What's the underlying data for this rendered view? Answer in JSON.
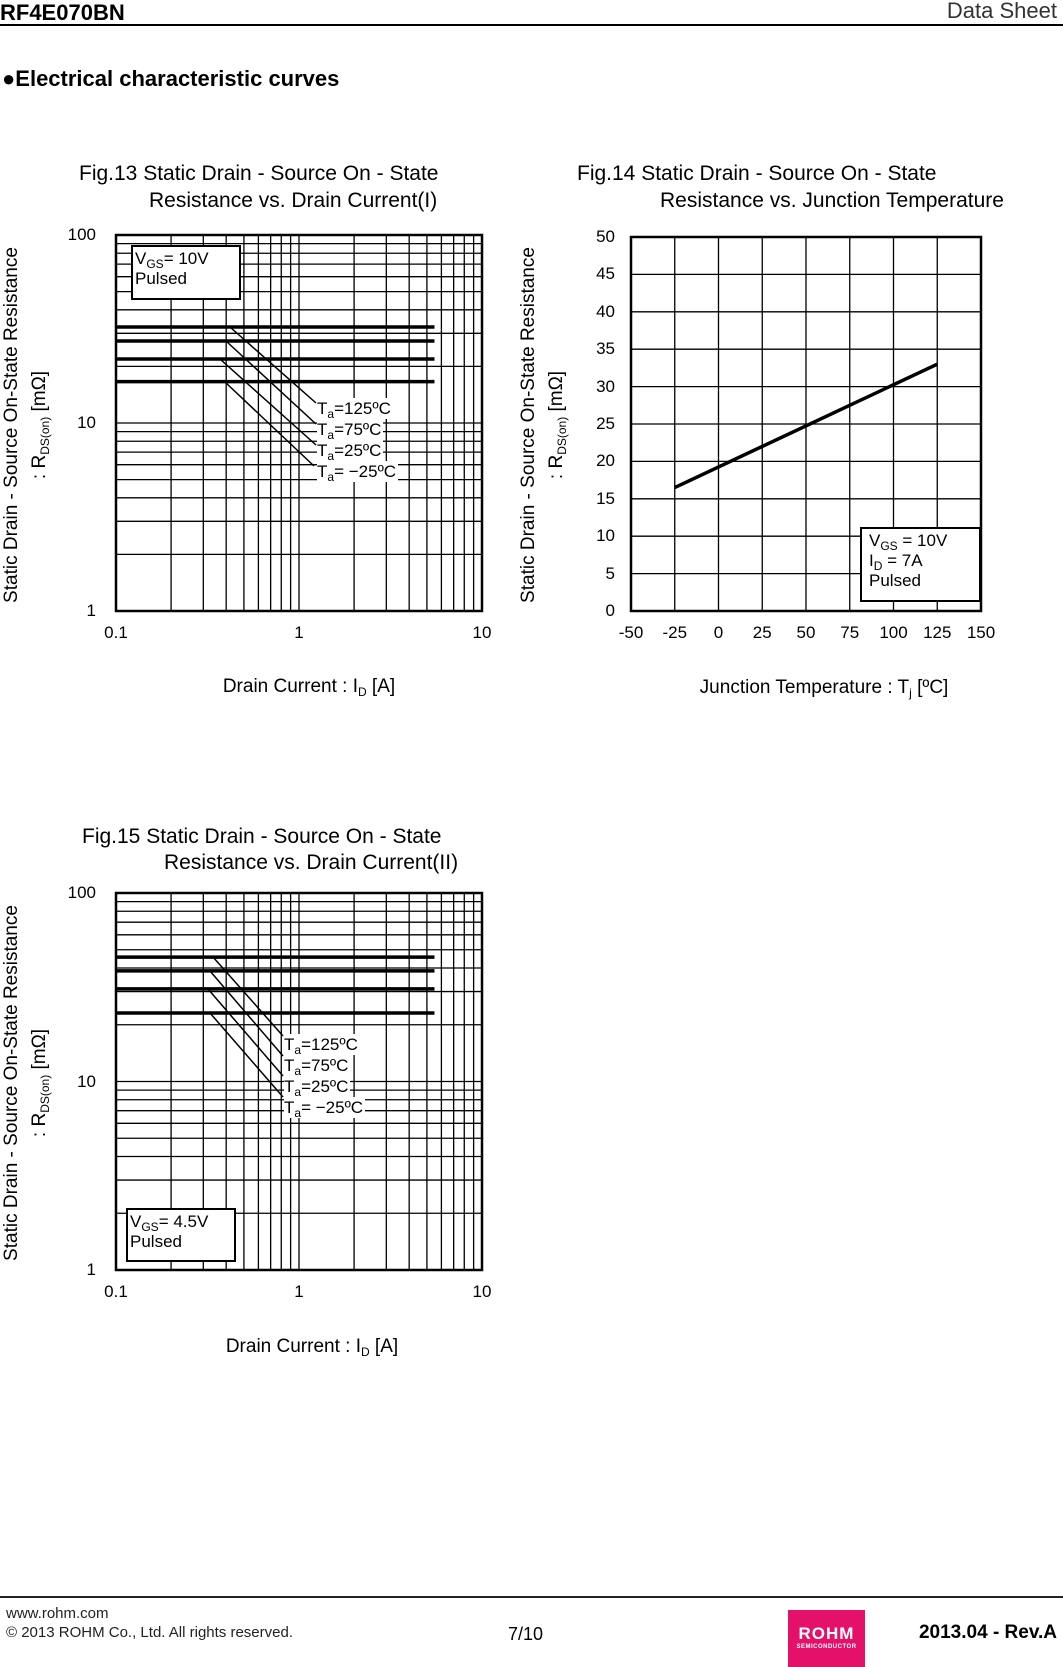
{
  "header": {
    "part_number": "RF4E070BN",
    "doc_type": "Data Sheet"
  },
  "section_title": "●Electrical characteristic curves",
  "chart_data": [
    {
      "type": "line",
      "title": [
        "Fig.13 Static Drain - Source On - State",
        "Resistance vs. Drain Current(I)"
      ],
      "xlabel": {
        "main": "Drain Current : I",
        "sub": "D",
        "unit": " [A]"
      },
      "ylabel": {
        "line1": "Static Drain - Source On-State Resistance",
        "line2_pre": ": R",
        "line2_sub": "DS(on)",
        "line2_post": " [mΩ]"
      },
      "xscale": "log",
      "yscale": "log",
      "xlim": [
        0.1,
        10
      ],
      "ylim": [
        1,
        100
      ],
      "xticks": [
        "0.1",
        "1",
        "10"
      ],
      "yticks": [
        "1",
        "10",
        "100"
      ],
      "grid": true,
      "conditions": {
        "l1_pre": "V",
        "l1_sub": "GS",
        "l1_post": "= 10V",
        "l2": "Pulsed"
      },
      "series": [
        {
          "name_pre": "T",
          "name_sub": "a",
          "name_post": "=125ºC",
          "x": [
            0.1,
            5.5
          ],
          "y": [
            32.4,
            32.4
          ]
        },
        {
          "name_pre": "T",
          "name_sub": "a",
          "name_post": "=75ºC",
          "x": [
            0.1,
            5.5
          ],
          "y": [
            27.3,
            27.3
          ]
        },
        {
          "name_pre": "T",
          "name_sub": "a",
          "name_post": "=25ºC",
          "x": [
            0.1,
            5.5
          ],
          "y": [
            21.9,
            21.9
          ]
        },
        {
          "name_pre": "T",
          "name_sub": "a",
          "name_post": "= −25ºC",
          "x": [
            0.1,
            5.5
          ],
          "y": [
            16.6,
            16.6
          ]
        }
      ]
    },
    {
      "type": "line",
      "title": [
        "Fig.14 Static Drain - Source On - State",
        "Resistance vs. Junction Temperature"
      ],
      "xlabel": {
        "main": "Junction Temperature : T",
        "sub": "j",
        "unit": " [ºC]"
      },
      "ylabel": {
        "line1": "Static Drain - Source On-State Resistance",
        "line2_pre": ": R",
        "line2_sub": "DS(on)",
        "line2_post": " [mΩ]"
      },
      "xscale": "linear",
      "yscale": "linear",
      "xlim": [
        -50,
        150
      ],
      "ylim": [
        0,
        50
      ],
      "xticks": [
        "-50",
        "-25",
        "0",
        "25",
        "50",
        "75",
        "100",
        "125",
        "150"
      ],
      "yticks": [
        "0",
        "5",
        "10",
        "15",
        "20",
        "25",
        "30",
        "35",
        "40",
        "45",
        "50"
      ],
      "grid": true,
      "conditions": {
        "l1_pre": "V",
        "l1_sub": "GS",
        "l1_post": " = 10V",
        "l2_pre": "I",
        "l2_sub": "D",
        "l2_post": " = 7A",
        "l3": "Pulsed"
      },
      "series": [
        {
          "x": [
            -25,
            125
          ],
          "y": [
            16.5,
            33
          ]
        }
      ]
    },
    {
      "type": "line",
      "title": [
        "Fig.15 Static Drain - Source On - State",
        "Resistance vs. Drain Current(II)"
      ],
      "xlabel": {
        "main": "Drain Current : I",
        "sub": "D",
        "unit": " [A]"
      },
      "ylabel": {
        "line1": "Static Drain - Source On-State Resistance",
        "line2_pre": ": R",
        "line2_sub": "DS(on)",
        "line2_post": " [mΩ]"
      },
      "xscale": "log",
      "yscale": "log",
      "xlim": [
        0.1,
        10
      ],
      "ylim": [
        1,
        100
      ],
      "xticks": [
        "0.1",
        "1",
        "10"
      ],
      "yticks": [
        "1",
        "10",
        "100"
      ],
      "grid": true,
      "conditions": {
        "l1_pre": "V",
        "l1_sub": "GS",
        "l1_post": "= 4.5V",
        "l2": "Pulsed"
      },
      "series": [
        {
          "name_pre": "T",
          "name_sub": "a",
          "name_post": "=125ºC",
          "x": [
            0.1,
            5.5
          ],
          "y": [
            45.7,
            45.7
          ]
        },
        {
          "name_pre": "T",
          "name_sub": "a",
          "name_post": "=75ºC",
          "x": [
            0.1,
            5.5
          ],
          "y": [
            38.6,
            38.6
          ]
        },
        {
          "name_pre": "T",
          "name_sub": "a",
          "name_post": "=25ºC",
          "x": [
            0.1,
            5.5
          ],
          "y": [
            31.0,
            31.0
          ]
        },
        {
          "name_pre": "T",
          "name_sub": "a",
          "name_post": "= −25ºC",
          "x": [
            0.1,
            5.5
          ],
          "y": [
            23.1,
            23.1
          ]
        }
      ]
    }
  ],
  "footer": {
    "url": "www.rohm.com",
    "copyright": "© 2013  ROHM Co., Ltd. All rights reserved.",
    "page": "7/10",
    "logo_main": "ROHM",
    "logo_sub": "SEMICONDUCTOR",
    "logo_color": "#e5106a",
    "revision": "2013.04 -  Rev.A"
  }
}
